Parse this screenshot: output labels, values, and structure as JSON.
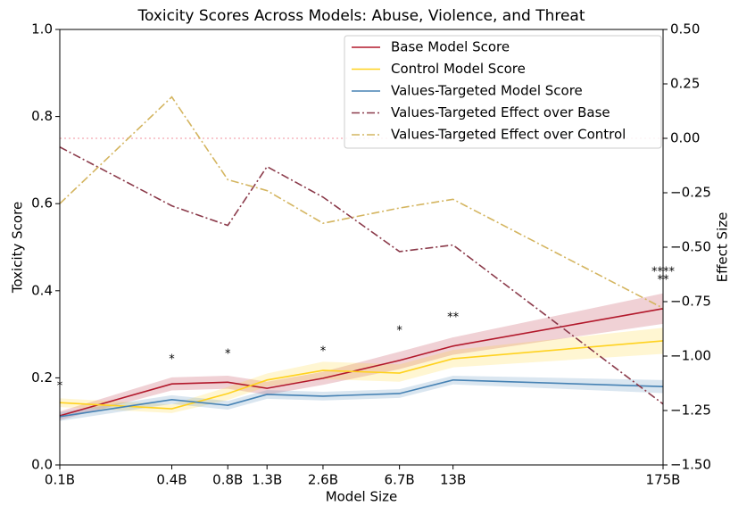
{
  "chart_data": {
    "type": "line",
    "title": "Toxicity Scores Across Models: Abuse, Violence, and Threat",
    "x_label": "Model Size",
    "y_label": "Toxicity Score",
    "y2_label": "Effect Size",
    "x_scale": "log",
    "x": [
      0.1,
      0.4,
      0.8,
      1.3,
      2.6,
      6.7,
      13,
      175
    ],
    "xlim": [
      0.1,
      175
    ],
    "xticks": [
      {
        "value": 0.1,
        "label": "0.1B"
      },
      {
        "value": 0.4,
        "label": "0.4B"
      },
      {
        "value": 0.8,
        "label": "0.8B"
      },
      {
        "value": 1.3,
        "label": "1.3B"
      },
      {
        "value": 2.6,
        "label": "2.6B"
      },
      {
        "value": 6.7,
        "label": "6.7B"
      },
      {
        "value": 13,
        "label": "13B"
      },
      {
        "value": 175,
        "label": "175B"
      }
    ],
    "ylim": [
      0,
      1
    ],
    "yticks": [
      {
        "value": 0,
        "label": "0.0"
      },
      0.2,
      0.4,
      0.6,
      0.8,
      {
        "value": 1,
        "label": "1.0"
      }
    ],
    "y2lim": [
      -1.5,
      0.5
    ],
    "y2ticks": [
      {
        "value": -1.5,
        "label": "−1.50"
      },
      {
        "value": -1.25,
        "label": "−1.25"
      },
      {
        "value": -1,
        "label": "−1.00"
      },
      {
        "value": -0.75,
        "label": "−0.75"
      },
      {
        "value": -0.5,
        "label": "−0.50"
      },
      {
        "value": -0.25,
        "label": "−0.25"
      },
      {
        "value": 0,
        "label": "0.00"
      },
      {
        "value": 0.25,
        "label": "0.25"
      },
      {
        "value": 0.5,
        "label": "0.50"
      }
    ],
    "reference_line": {
      "axis": "y2",
      "value": 0,
      "color": "#f4a6b0"
    },
    "legend": "upper right",
    "series": [
      {
        "name": "Base Model Score",
        "color": "#b2182b",
        "dash": "solid",
        "values": [
          0.113,
          0.186,
          0.19,
          0.176,
          0.199,
          0.24,
          0.273,
          0.359
        ],
        "errors": [
          0.01,
          0.015,
          0.015,
          0.015,
          0.015,
          0.02,
          0.02,
          0.035
        ]
      },
      {
        "name": "Control Model Score",
        "color": "#ffd21f",
        "dash": "solid",
        "values": [
          0.143,
          0.129,
          0.164,
          0.195,
          0.217,
          0.211,
          0.244,
          0.285
        ],
        "errors": [
          0.01,
          0.01,
          0.015,
          0.015,
          0.02,
          0.02,
          0.02,
          0.03
        ]
      },
      {
        "name": "Values-Targeted Model Score",
        "color": "#4682b4",
        "dash": "solid",
        "values": [
          0.111,
          0.15,
          0.137,
          0.162,
          0.158,
          0.164,
          0.195,
          0.18
        ],
        "errors": [
          0.01,
          0.01,
          0.01,
          0.01,
          0.01,
          0.01,
          0.01,
          0.015
        ]
      },
      {
        "name": "Values-Targeted Effect over Base",
        "color": "#8b3a4a",
        "dash": "dashdot",
        "axis": "y2",
        "values": [
          -0.04,
          -0.31,
          -0.4,
          -0.13,
          -0.27,
          -0.52,
          -0.49,
          -1.22
        ]
      },
      {
        "name": "Values-Targeted Effect over Control",
        "color": "#d4b560",
        "dash": "dashdot",
        "axis": "y2",
        "values": [
          -0.3,
          0.19,
          -0.19,
          -0.24,
          -0.39,
          -0.32,
          -0.28,
          -0.78
        ]
      }
    ],
    "annotations": [
      {
        "text": "*",
        "x": 0.4,
        "y": 0.242,
        "color": "#b2182b"
      },
      {
        "text": "*",
        "x": 0.8,
        "y": 0.254,
        "color": "#b2182b"
      },
      {
        "text": "*",
        "x": 6.7,
        "y": 0.307,
        "color": "#b2182b"
      },
      {
        "text": "**",
        "x": 13,
        "y": 0.338,
        "color": "#b2182b"
      },
      {
        "text": "****",
        "x": 175,
        "y": 0.443,
        "color": "#b2182b"
      },
      {
        "text": "*",
        "x": 0.1,
        "y": 0.18,
        "color": "#ffc107"
      },
      {
        "text": "*",
        "x": 2.6,
        "y": 0.26,
        "color": "#ffc107"
      },
      {
        "text": "**",
        "x": 175,
        "y": 0.424,
        "color": "#ffc107"
      }
    ]
  }
}
